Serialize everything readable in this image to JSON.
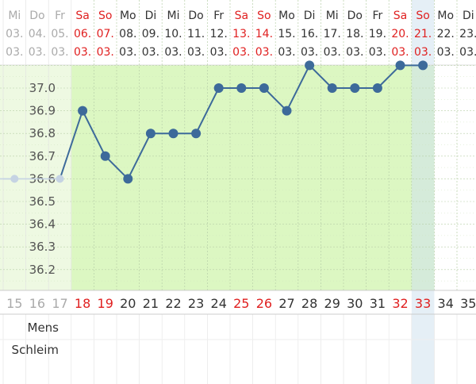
{
  "chart_data": {
    "type": "line",
    "title": "",
    "xlabel": "",
    "ylabel": "",
    "ylim": [
      36.1,
      37.1
    ],
    "yticks": [
      "37.0",
      "36.9",
      "36.8",
      "36.7",
      "36.6",
      "36.5",
      "36.4",
      "36.3",
      "36.2"
    ],
    "grid": true,
    "columns": [
      {
        "dow": "Mi",
        "date": "03.",
        "month": "03.",
        "cycle": "15",
        "weekend": false,
        "inCycle": false
      },
      {
        "dow": "Do",
        "date": "04.",
        "month": "03.",
        "cycle": "16",
        "weekend": false,
        "inCycle": false
      },
      {
        "dow": "Fr",
        "date": "05.",
        "month": "03.",
        "cycle": "17",
        "weekend": false,
        "inCycle": false
      },
      {
        "dow": "Sa",
        "date": "06.",
        "month": "03.",
        "cycle": "18",
        "weekend": true,
        "inCycle": true
      },
      {
        "dow": "So",
        "date": "07.",
        "month": "03.",
        "cycle": "19",
        "weekend": true,
        "inCycle": true
      },
      {
        "dow": "Mo",
        "date": "08.",
        "month": "03.",
        "cycle": "20",
        "weekend": false,
        "inCycle": true
      },
      {
        "dow": "Di",
        "date": "09.",
        "month": "03.",
        "cycle": "21",
        "weekend": false,
        "inCycle": true
      },
      {
        "dow": "Mi",
        "date": "10.",
        "month": "03.",
        "cycle": "22",
        "weekend": false,
        "inCycle": true
      },
      {
        "dow": "Do",
        "date": "11.",
        "month": "03.",
        "cycle": "23",
        "weekend": false,
        "inCycle": true
      },
      {
        "dow": "Fr",
        "date": "12.",
        "month": "03.",
        "cycle": "24",
        "weekend": false,
        "inCycle": true
      },
      {
        "dow": "Sa",
        "date": "13.",
        "month": "03.",
        "cycle": "25",
        "weekend": true,
        "inCycle": true
      },
      {
        "dow": "So",
        "date": "14.",
        "month": "03.",
        "cycle": "26",
        "weekend": true,
        "inCycle": true
      },
      {
        "dow": "Mo",
        "date": "15.",
        "month": "03.",
        "cycle": "27",
        "weekend": false,
        "inCycle": true
      },
      {
        "dow": "Di",
        "date": "16.",
        "month": "03.",
        "cycle": "28",
        "weekend": false,
        "inCycle": true
      },
      {
        "dow": "Mi",
        "date": "17.",
        "month": "03.",
        "cycle": "29",
        "weekend": false,
        "inCycle": true
      },
      {
        "dow": "Do",
        "date": "18.",
        "month": "03.",
        "cycle": "30",
        "weekend": false,
        "inCycle": true
      },
      {
        "dow": "Fr",
        "date": "19.",
        "month": "03.",
        "cycle": "31",
        "weekend": false,
        "inCycle": true
      },
      {
        "dow": "Sa",
        "date": "20.",
        "month": "03.",
        "cycle": "32",
        "weekend": true,
        "inCycle": true
      },
      {
        "dow": "So",
        "date": "21.",
        "month": "03.",
        "cycle": "33",
        "weekend": true,
        "inCycle": true
      },
      {
        "dow": "Mo",
        "date": "22.",
        "month": "03.",
        "cycle": "34",
        "weekend": false,
        "inCycle": false
      },
      {
        "dow": "Di",
        "date": "23.",
        "month": "03.",
        "cycle": "35",
        "weekend": false,
        "inCycle": false
      }
    ],
    "today_index": 18,
    "series": [
      {
        "values": [
          36.6,
          null,
          36.6,
          36.9,
          36.7,
          36.6,
          36.8,
          36.8,
          36.8,
          37.0,
          37.0,
          37.0,
          36.9,
          37.1,
          37.0,
          37.0,
          37.0,
          37.1,
          37.1,
          null,
          null
        ]
      }
    ],
    "row_labels": [
      "Mens",
      "Schleim"
    ]
  },
  "colors": {
    "weekend_text": "#e02020",
    "normal_text": "#333333",
    "faded_text": "#aaaaaa",
    "line": "#3d6a9a",
    "faded_point": "#c5d3e3",
    "green_fill": "#dcf7c2",
    "faded_fill": "#eef9e2",
    "today_fill": "#cfe2ef",
    "grid": "#b8cfa8"
  }
}
